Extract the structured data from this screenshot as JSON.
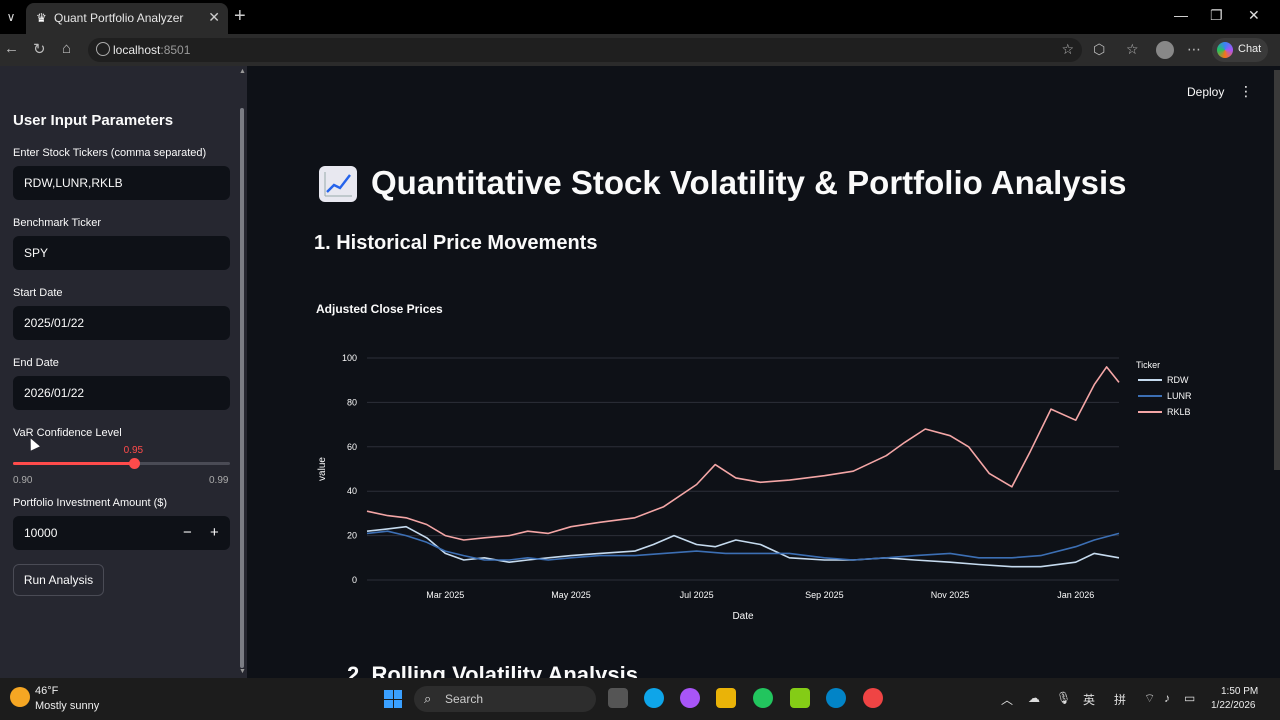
{
  "browser": {
    "tab_title": "Quant Portfolio Analyzer",
    "url_host": "localhost",
    "url_port": ":8501",
    "chat_label": "Chat"
  },
  "header": {
    "deploy_label": "Deploy"
  },
  "sidebar": {
    "heading": "User Input Parameters",
    "tickers": {
      "label": "Enter Stock Tickers (comma separated)",
      "value": "RDW,LUNR,RKLB"
    },
    "benchmark": {
      "label": "Benchmark Ticker",
      "value": "SPY"
    },
    "start_date": {
      "label": "Start Date",
      "value": "2025/01/22"
    },
    "end_date": {
      "label": "End Date",
      "value": "2026/01/22"
    },
    "var_slider": {
      "label": "VaR Confidence Level",
      "value": "0.95",
      "min": "0.90",
      "max": "0.99",
      "fraction": 0.556
    },
    "investment": {
      "label": "Portfolio Investment Amount ($)",
      "value": "10000",
      "minus": "−",
      "plus": "+"
    },
    "run_button": "Run Analysis"
  },
  "main": {
    "title": "Quantitative Stock Volatility & Portfolio Analysis",
    "section1": "1. Historical Price Movements",
    "section2_partial": "2. Rolling Volatility Analysis"
  },
  "chart_data": {
    "type": "line",
    "title": "Adjusted Close Prices",
    "xlabel": "Date",
    "ylabel": "value",
    "legend_title": "Ticker",
    "legend_position": "right",
    "ylim": [
      0,
      100
    ],
    "yticks": [
      "0",
      "20",
      "40",
      "60",
      "80",
      "100"
    ],
    "xticks": [
      "Mar 2025",
      "May 2025",
      "Jul 2025",
      "Sep 2025",
      "Nov 2025",
      "Jan 2026"
    ],
    "xtick_dates": [
      "2025-03-01",
      "2025-05-01",
      "2025-07-01",
      "2025-09-01",
      "2025-11-01",
      "2026-01-01"
    ],
    "x_range": [
      "2025-01-22",
      "2026-01-22"
    ],
    "grid": true,
    "series": [
      {
        "name": "RDW",
        "color": "#c6dbef",
        "x": [
          "2025-01-22",
          "2025-02-01",
          "2025-02-10",
          "2025-02-20",
          "2025-03-01",
          "2025-03-10",
          "2025-03-20",
          "2025-04-01",
          "2025-04-10",
          "2025-04-20",
          "2025-05-01",
          "2025-05-15",
          "2025-06-01",
          "2025-06-10",
          "2025-06-20",
          "2025-07-01",
          "2025-07-10",
          "2025-07-20",
          "2025-08-01",
          "2025-08-15",
          "2025-09-01",
          "2025-09-15",
          "2025-10-01",
          "2025-10-15",
          "2025-11-01",
          "2025-11-15",
          "2025-12-01",
          "2025-12-15",
          "2026-01-01",
          "2026-01-10",
          "2026-01-22"
        ],
        "values": [
          22,
          23,
          24,
          19,
          12,
          9,
          10,
          8,
          9,
          10,
          11,
          12,
          13,
          16,
          20,
          16,
          15,
          18,
          16,
          10,
          9,
          9,
          10,
          9,
          8,
          7,
          6,
          6,
          8,
          12,
          10
        ]
      },
      {
        "name": "LUNR",
        "color": "#3c6fb4",
        "x": [
          "2025-01-22",
          "2025-02-01",
          "2025-02-10",
          "2025-02-20",
          "2025-03-01",
          "2025-03-10",
          "2025-03-20",
          "2025-04-01",
          "2025-04-10",
          "2025-04-20",
          "2025-05-01",
          "2025-05-15",
          "2025-06-01",
          "2025-06-15",
          "2025-07-01",
          "2025-07-15",
          "2025-08-01",
          "2025-08-15",
          "2025-09-01",
          "2025-09-15",
          "2025-10-01",
          "2025-10-15",
          "2025-11-01",
          "2025-11-15",
          "2025-12-01",
          "2025-12-15",
          "2026-01-01",
          "2026-01-10",
          "2026-01-22"
        ],
        "values": [
          21,
          22,
          20,
          17,
          13,
          11,
          9,
          9,
          10,
          9,
          10,
          11,
          11,
          12,
          13,
          12,
          12,
          12,
          10,
          9,
          10,
          11,
          12,
          10,
          10,
          11,
          15,
          18,
          21
        ]
      },
      {
        "name": "RKLB",
        "color": "#f4a6a6",
        "x": [
          "2025-01-22",
          "2025-02-01",
          "2025-02-10",
          "2025-02-20",
          "2025-03-01",
          "2025-03-10",
          "2025-03-20",
          "2025-04-01",
          "2025-04-10",
          "2025-04-20",
          "2025-05-01",
          "2025-05-15",
          "2025-06-01",
          "2025-06-15",
          "2025-07-01",
          "2025-07-10",
          "2025-07-20",
          "2025-08-01",
          "2025-08-15",
          "2025-09-01",
          "2025-09-15",
          "2025-10-01",
          "2025-10-10",
          "2025-10-20",
          "2025-11-01",
          "2025-11-10",
          "2025-11-20",
          "2025-12-01",
          "2025-12-10",
          "2025-12-20",
          "2026-01-01",
          "2026-01-10",
          "2026-01-16",
          "2026-01-22"
        ],
        "values": [
          31,
          29,
          28,
          25,
          20,
          18,
          19,
          20,
          22,
          21,
          24,
          26,
          28,
          33,
          43,
          52,
          46,
          44,
          45,
          47,
          49,
          56,
          62,
          68,
          65,
          60,
          48,
          42,
          58,
          77,
          72,
          88,
          96,
          89
        ]
      }
    ]
  }
}
